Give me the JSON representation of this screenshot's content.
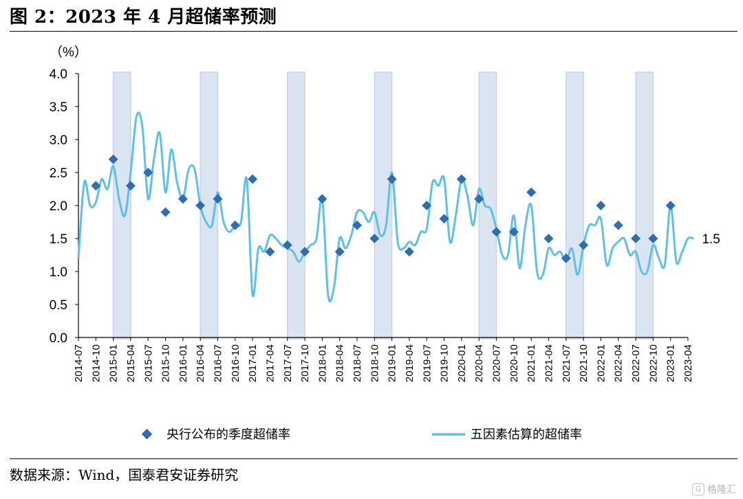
{
  "page": {
    "title": "图 2：2023 年 4 月超储率预测",
    "source": "数据来源：Wind，国泰君安证券研究",
    "watermark": "格隆汇",
    "watermark_icon": "g-logo-icon"
  },
  "colors": {
    "line": "#5bc0eb",
    "marker": "#2e6db4",
    "shade": "#dbe5f1",
    "shade_border": "#c5d4e8"
  },
  "chart_data": {
    "type": "line",
    "ylabel": "（%）",
    "ylim": [
      0,
      4
    ],
    "yticks": [
      "0.0",
      "0.5",
      "1.0",
      "1.5",
      "2.0",
      "2.5",
      "3.0",
      "3.5",
      "4.0"
    ],
    "xticks": [
      "2014-07",
      "2014-10",
      "2015-01",
      "2015-04",
      "2015-07",
      "2015-10",
      "2016-01",
      "2016-04",
      "2016-07",
      "2016-10",
      "2017-01",
      "2017-04",
      "2017-07",
      "2017-10",
      "2018-01",
      "2018-04",
      "2018-07",
      "2018-10",
      "2019-01",
      "2019-04",
      "2019-07",
      "2019-10",
      "2020-01",
      "2020-04",
      "2020-07",
      "2020-10",
      "2021-01",
      "2021-04",
      "2021-07",
      "2021-10",
      "2022-01",
      "2022-04",
      "2022-07",
      "2022-10",
      "2023-01",
      "2023-04"
    ],
    "end_label": "1.5",
    "grid": false,
    "legend_position": "bottom",
    "shaded_periods": [
      [
        "2015-01",
        "2015-04"
      ],
      [
        "2016-04",
        "2016-07"
      ],
      [
        "2017-07",
        "2017-10"
      ],
      [
        "2018-10",
        "2019-01"
      ],
      [
        "2020-04",
        "2020-07"
      ],
      [
        "2021-07",
        "2021-10"
      ],
      [
        "2022-07",
        "2022-10"
      ]
    ],
    "series": [
      {
        "name": "央行公布的季度超储率",
        "type": "scatter",
        "marker": "diamond",
        "points": [
          [
            "2014-10",
            2.3
          ],
          [
            "2015-01",
            2.7
          ],
          [
            "2015-04",
            2.3
          ],
          [
            "2015-07",
            2.5
          ],
          [
            "2015-10",
            1.9
          ],
          [
            "2016-01",
            2.1
          ],
          [
            "2016-04",
            2.0
          ],
          [
            "2016-07",
            2.1
          ],
          [
            "2016-10",
            1.7
          ],
          [
            "2017-01",
            2.4
          ],
          [
            "2017-04",
            1.3
          ],
          [
            "2017-07",
            1.4
          ],
          [
            "2017-10",
            1.3
          ],
          [
            "2018-01",
            2.1
          ],
          [
            "2018-04",
            1.3
          ],
          [
            "2018-07",
            1.7
          ],
          [
            "2018-10",
            1.5
          ],
          [
            "2019-01",
            2.4
          ],
          [
            "2019-04",
            1.3
          ],
          [
            "2019-07",
            2.0
          ],
          [
            "2019-10",
            1.8
          ],
          [
            "2020-01",
            2.4
          ],
          [
            "2020-04",
            2.1
          ],
          [
            "2020-07",
            1.6
          ],
          [
            "2020-10",
            1.6
          ],
          [
            "2021-01",
            2.2
          ],
          [
            "2021-04",
            1.5
          ],
          [
            "2021-07",
            1.2
          ],
          [
            "2021-10",
            1.4
          ],
          [
            "2022-01",
            2.0
          ],
          [
            "2022-04",
            1.7
          ],
          [
            "2022-07",
            1.5
          ],
          [
            "2022-10",
            1.5
          ],
          [
            "2023-01",
            2.0
          ]
        ]
      },
      {
        "name": "五因素估算的超储率",
        "type": "line",
        "points": [
          [
            "2014-07",
            1.2
          ],
          [
            "2014-08",
            2.35
          ],
          [
            "2014-09",
            2.0
          ],
          [
            "2014-10",
            2.05
          ],
          [
            "2014-11",
            2.4
          ],
          [
            "2014-12",
            2.25
          ],
          [
            "2015-01",
            2.6
          ],
          [
            "2015-02",
            2.1
          ],
          [
            "2015-03",
            1.85
          ],
          [
            "2015-04",
            2.5
          ],
          [
            "2015-05",
            3.35
          ],
          [
            "2015-06",
            3.2
          ],
          [
            "2015-07",
            2.1
          ],
          [
            "2015-08",
            2.7
          ],
          [
            "2015-09",
            3.1
          ],
          [
            "2015-10",
            2.2
          ],
          [
            "2015-11",
            2.85
          ],
          [
            "2015-12",
            2.35
          ],
          [
            "2016-01",
            2.1
          ],
          [
            "2016-02",
            2.55
          ],
          [
            "2016-03",
            2.55
          ],
          [
            "2016-04",
            2.0
          ],
          [
            "2016-05",
            1.75
          ],
          [
            "2016-06",
            1.7
          ],
          [
            "2016-07",
            2.2
          ],
          [
            "2016-08",
            1.75
          ],
          [
            "2016-09",
            1.6
          ],
          [
            "2016-10",
            1.7
          ],
          [
            "2016-11",
            1.75
          ],
          [
            "2016-12",
            2.4
          ],
          [
            "2017-01",
            0.65
          ],
          [
            "2017-02",
            1.35
          ],
          [
            "2017-03",
            1.3
          ],
          [
            "2017-04",
            1.55
          ],
          [
            "2017-05",
            1.5
          ],
          [
            "2017-06",
            1.4
          ],
          [
            "2017-07",
            1.35
          ],
          [
            "2017-08",
            1.3
          ],
          [
            "2017-09",
            1.15
          ],
          [
            "2017-10",
            1.3
          ],
          [
            "2017-11",
            1.4
          ],
          [
            "2017-12",
            1.5
          ],
          [
            "2018-01",
            2.1
          ],
          [
            "2018-02",
            0.65
          ],
          [
            "2018-03",
            0.75
          ],
          [
            "2018-04",
            1.5
          ],
          [
            "2018-05",
            1.35
          ],
          [
            "2018-06",
            1.55
          ],
          [
            "2018-07",
            1.9
          ],
          [
            "2018-08",
            1.9
          ],
          [
            "2018-09",
            1.75
          ],
          [
            "2018-10",
            1.9
          ],
          [
            "2018-11",
            1.55
          ],
          [
            "2018-12",
            1.7
          ],
          [
            "2019-01",
            2.5
          ],
          [
            "2019-02",
            1.45
          ],
          [
            "2019-03",
            1.35
          ],
          [
            "2019-04",
            1.45
          ],
          [
            "2019-05",
            1.4
          ],
          [
            "2019-06",
            1.6
          ],
          [
            "2019-07",
            1.65
          ],
          [
            "2019-08",
            2.35
          ],
          [
            "2019-09",
            2.3
          ],
          [
            "2019-10",
            2.4
          ],
          [
            "2019-11",
            1.45
          ],
          [
            "2019-12",
            1.85
          ],
          [
            "2020-01",
            2.4
          ],
          [
            "2020-02",
            2.15
          ],
          [
            "2020-03",
            1.7
          ],
          [
            "2020-04",
            2.25
          ],
          [
            "2020-05",
            2.0
          ],
          [
            "2020-06",
            1.95
          ],
          [
            "2020-07",
            1.65
          ],
          [
            "2020-08",
            1.25
          ],
          [
            "2020-09",
            1.25
          ],
          [
            "2020-10",
            1.85
          ],
          [
            "2020-11",
            1.05
          ],
          [
            "2020-12",
            1.7
          ],
          [
            "2021-01",
            2.0
          ],
          [
            "2021-02",
            1.0
          ],
          [
            "2021-03",
            0.95
          ],
          [
            "2021-04",
            1.35
          ],
          [
            "2021-05",
            1.25
          ],
          [
            "2021-06",
            1.3
          ],
          [
            "2021-07",
            1.15
          ],
          [
            "2021-08",
            1.35
          ],
          [
            "2021-09",
            0.95
          ],
          [
            "2021-10",
            1.4
          ],
          [
            "2021-11",
            1.7
          ],
          [
            "2021-12",
            1.7
          ],
          [
            "2022-01",
            1.8
          ],
          [
            "2022-02",
            1.1
          ],
          [
            "2022-03",
            1.35
          ],
          [
            "2022-04",
            1.45
          ],
          [
            "2022-05",
            1.5
          ],
          [
            "2022-06",
            1.25
          ],
          [
            "2022-07",
            1.3
          ],
          [
            "2022-08",
            1.0
          ],
          [
            "2022-09",
            1.0
          ],
          [
            "2022-10",
            1.4
          ],
          [
            "2022-11",
            1.2
          ],
          [
            "2022-12",
            1.1
          ],
          [
            "2023-01",
            2.0
          ],
          [
            "2023-02",
            1.15
          ],
          [
            "2023-03",
            1.3
          ],
          [
            "2023-04",
            1.5
          ],
          [
            "2023-05",
            1.5
          ]
        ]
      }
    ]
  }
}
